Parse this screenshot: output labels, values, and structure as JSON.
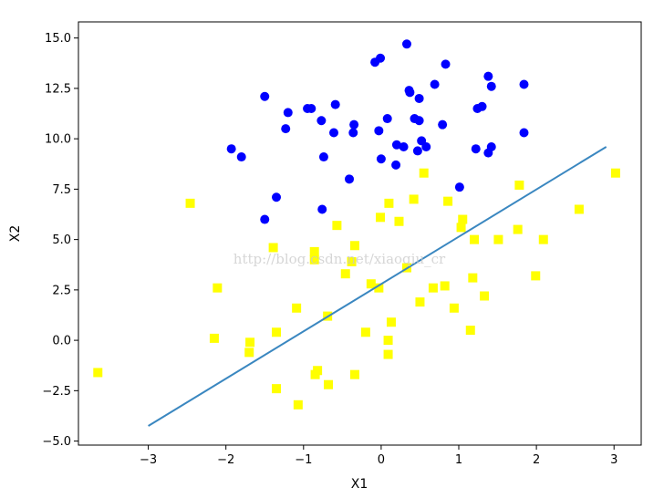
{
  "chart_data": {
    "type": "scatter",
    "title": "",
    "xlabel": "X1",
    "ylabel": "X2",
    "xlim": [
      -3.9,
      3.35
    ],
    "ylim": [
      -5.2,
      15.8
    ],
    "xticks": [
      -3,
      -2,
      -1,
      0,
      1,
      2,
      3
    ],
    "xtick_labels": [
      "−3",
      "−2",
      "−1",
      "0",
      "1",
      "2",
      "3"
    ],
    "yticks": [
      -5.0,
      -2.5,
      0.0,
      2.5,
      5.0,
      7.5,
      10.0,
      12.5,
      15.0
    ],
    "ytick_labels": [
      "−5.0",
      "−2.5",
      "0.0",
      "2.5",
      "5.0",
      "7.5",
      "10.0",
      "12.5",
      "15.0"
    ],
    "grid": false,
    "legend": "none",
    "watermark": "http://blog.csdn.net/xiaoqiu_cr",
    "series": [
      {
        "marker": "circle",
        "color": "#0000ff",
        "points": [
          [
            0.33,
            14.7
          ],
          [
            -0.08,
            13.8
          ],
          [
            -0.01,
            14.0
          ],
          [
            0.83,
            13.7
          ],
          [
            1.38,
            13.1
          ],
          [
            -1.5,
            12.1
          ],
          [
            0.36,
            12.4
          ],
          [
            0.37,
            12.3
          ],
          [
            0.49,
            12.0
          ],
          [
            0.69,
            12.7
          ],
          [
            1.42,
            12.6
          ],
          [
            1.84,
            12.7
          ],
          [
            -1.2,
            11.3
          ],
          [
            -0.95,
            11.5
          ],
          [
            -0.9,
            11.5
          ],
          [
            -0.59,
            11.7
          ],
          [
            1.24,
            11.5
          ],
          [
            1.3,
            11.6
          ],
          [
            -0.77,
            10.9
          ],
          [
            0.08,
            11.0
          ],
          [
            0.43,
            11.0
          ],
          [
            0.49,
            10.9
          ],
          [
            0.79,
            10.7
          ],
          [
            -1.23,
            10.5
          ],
          [
            -0.35,
            10.7
          ],
          [
            -0.36,
            10.3
          ],
          [
            -0.61,
            10.3
          ],
          [
            -0.03,
            10.4
          ],
          [
            1.84,
            10.3
          ],
          [
            0.52,
            9.9
          ],
          [
            0.2,
            9.7
          ],
          [
            0.29,
            9.6
          ],
          [
            0.58,
            9.6
          ],
          [
            1.42,
            9.6
          ],
          [
            1.38,
            9.3
          ],
          [
            1.22,
            9.5
          ],
          [
            0.47,
            9.4
          ],
          [
            -1.93,
            9.5
          ],
          [
            -1.8,
            9.1
          ],
          [
            -0.74,
            9.1
          ],
          [
            0.0,
            9.0
          ],
          [
            0.19,
            8.7
          ],
          [
            -0.41,
            8.0
          ],
          [
            1.01,
            7.6
          ],
          [
            -1.35,
            7.1
          ],
          [
            -0.76,
            6.5
          ],
          [
            -1.5,
            6.0
          ]
        ]
      },
      {
        "marker": "square",
        "color": "#ffff00",
        "points": [
          [
            0.55,
            8.3
          ],
          [
            3.02,
            8.3
          ],
          [
            1.78,
            7.7
          ],
          [
            0.42,
            7.0
          ],
          [
            -2.46,
            6.8
          ],
          [
            0.1,
            6.8
          ],
          [
            0.86,
            6.9
          ],
          [
            2.55,
            6.5
          ],
          [
            -0.01,
            6.1
          ],
          [
            0.23,
            5.9
          ],
          [
            1.05,
            6.0
          ],
          [
            1.03,
            5.6
          ],
          [
            -0.57,
            5.7
          ],
          [
            1.76,
            5.5
          ],
          [
            1.2,
            5.0
          ],
          [
            1.51,
            5.0
          ],
          [
            2.09,
            5.0
          ],
          [
            -1.39,
            4.6
          ],
          [
            -0.34,
            4.7
          ],
          [
            -0.86,
            4.4
          ],
          [
            -0.86,
            4.0
          ],
          [
            -0.38,
            3.9
          ],
          [
            0.33,
            3.6
          ],
          [
            -0.46,
            3.3
          ],
          [
            1.99,
            3.2
          ],
          [
            1.18,
            3.1
          ],
          [
            -0.13,
            2.8
          ],
          [
            -0.03,
            2.6
          ],
          [
            0.67,
            2.6
          ],
          [
            0.82,
            2.7
          ],
          [
            -2.11,
            2.6
          ],
          [
            1.33,
            2.2
          ],
          [
            0.5,
            1.9
          ],
          [
            0.94,
            1.6
          ],
          [
            -1.09,
            1.6
          ],
          [
            -0.69,
            1.2
          ],
          [
            0.13,
            0.9
          ],
          [
            -1.35,
            0.4
          ],
          [
            -0.2,
            0.4
          ],
          [
            1.15,
            0.5
          ],
          [
            -2.15,
            0.1
          ],
          [
            -1.69,
            -0.1
          ],
          [
            0.09,
            0.0
          ],
          [
            -1.7,
            -0.6
          ],
          [
            0.09,
            -0.7
          ],
          [
            -3.65,
            -1.6
          ],
          [
            -0.82,
            -1.5
          ],
          [
            -0.85,
            -1.7
          ],
          [
            -0.34,
            -1.7
          ],
          [
            -0.68,
            -2.2
          ],
          [
            -1.35,
            -2.4
          ],
          [
            -1.07,
            -3.2
          ]
        ]
      }
    ],
    "line": {
      "color": "#3a87c0",
      "points": [
        [
          -3.0,
          -4.25
        ],
        [
          2.9,
          9.6
        ]
      ]
    }
  }
}
